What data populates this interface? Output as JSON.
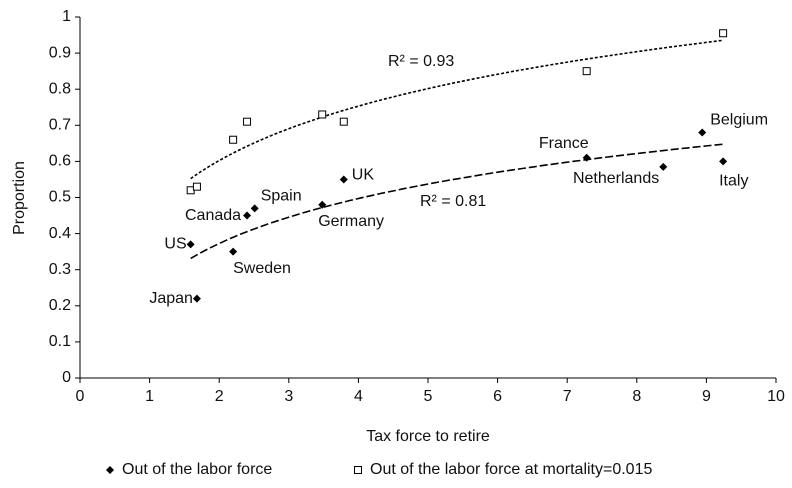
{
  "chart_data": {
    "type": "scatter",
    "x_label": "Tax force to retire",
    "y_label": "Proportion",
    "xlim": [
      0,
      10
    ],
    "xticks": [
      0,
      1,
      2,
      3,
      4,
      5,
      6,
      7,
      8,
      9,
      10
    ],
    "ylim": [
      0,
      1
    ],
    "yticks": [
      0,
      0.1,
      0.2,
      0.3,
      0.4,
      0.5,
      0.6,
      0.7,
      0.8,
      0.9,
      1
    ],
    "trendline": "log",
    "series": [
      {
        "name": "Out of the labor force",
        "color": "#000000",
        "marker": "diamond",
        "labels": [
          "US",
          "Japan",
          "Sweden",
          "Canada",
          "Spain",
          "Germany",
          "UK",
          "France",
          "Netherlands",
          "Belgium",
          "Italy"
        ],
        "x": [
          1.59,
          1.68,
          2.2,
          2.4,
          2.51,
          3.48,
          3.79,
          7.28,
          8.38,
          8.94,
          9.24
        ],
        "values": [
          0.37,
          0.22,
          0.35,
          0.45,
          0.47,
          0.48,
          0.55,
          0.61,
          0.585,
          0.68,
          0.6
        ],
        "annotation": "R² = 0.81"
      },
      {
        "name": "Out of the labor force at mortality=0.015",
        "color": "#000000",
        "marker": "square",
        "x": [
          1.59,
          1.68,
          2.2,
          2.4,
          3.48,
          3.79,
          7.28,
          9.24
        ],
        "values": [
          0.52,
          0.53,
          0.66,
          0.71,
          0.73,
          0.71,
          0.85,
          0.955
        ],
        "annotation": "R² = 0.93"
      }
    ]
  }
}
